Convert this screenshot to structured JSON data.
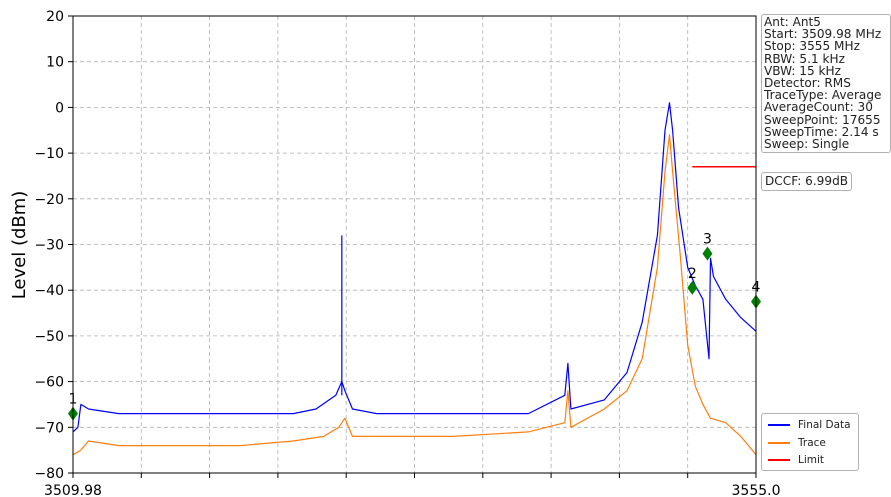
{
  "chart_data": {
    "type": "line",
    "xlabel": "",
    "ylabel": "Level (dBm)",
    "xlim": [
      3509.98,
      3555.0
    ],
    "ylim": [
      -80,
      20
    ],
    "x_tick_labels": [
      "3509.98",
      "3555.0"
    ],
    "y_ticks": [
      20,
      10,
      0,
      -10,
      -20,
      -30,
      -40,
      -50,
      -60,
      -70,
      -80
    ],
    "y_tick_labels": [
      "20",
      "10",
      "0",
      "−10",
      "−20",
      "−30",
      "−40",
      "−50",
      "−60",
      "−70",
      "−80"
    ],
    "grid": true,
    "legend_position": "lower-right",
    "series": [
      {
        "name": "Final Data",
        "color": "#0000ff",
        "x": [
          3509.98,
          3510.3,
          3510.5,
          3511.0,
          3513.0,
          3517.0,
          3521.0,
          3524.5,
          3526.0,
          3527.3,
          3527.7,
          3527.9,
          3528.4,
          3530.0,
          3535.0,
          3540.0,
          3542.4,
          3542.6,
          3542.8,
          3545.0,
          3546.5,
          3547.5,
          3548.5,
          3549.0,
          3549.3,
          3549.5,
          3549.9,
          3550.5,
          3551.0,
          3551.5,
          3551.9,
          3552.0,
          3552.2,
          3553.0,
          3554.0,
          3555.0
        ],
        "values": [
          -71,
          -70,
          -65,
          -66,
          -67,
          -67,
          -67,
          -67,
          -66,
          -63,
          -60,
          -62,
          -66,
          -67,
          -67,
          -67,
          -63,
          -56,
          -66,
          -64,
          -58,
          -47,
          -28,
          -5,
          1,
          -5,
          -22,
          -35,
          -39,
          -42,
          -55,
          -33,
          -37,
          -42,
          -46,
          -49
        ]
      },
      {
        "name": "Trace",
        "color": "#ff7f0e",
        "x": [
          3509.98,
          3510.5,
          3511.0,
          3513.0,
          3517.0,
          3521.0,
          3524.5,
          3526.5,
          3527.5,
          3527.9,
          3528.4,
          3530.0,
          3535.0,
          3540.0,
          3542.4,
          3542.6,
          3542.8,
          3545.0,
          3546.5,
          3547.5,
          3548.5,
          3549.0,
          3549.3,
          3549.5,
          3550.0,
          3550.5,
          3551.0,
          3551.5,
          3552.0,
          3553.0,
          3554.0,
          3555.0
        ],
        "values": [
          -76,
          -75,
          -73,
          -74,
          -74,
          -74,
          -73,
          -72,
          -70,
          -68,
          -72,
          -72,
          -72,
          -71,
          -69,
          -62,
          -70,
          -66,
          -62,
          -55,
          -35,
          -14,
          -6,
          -14,
          -32,
          -52,
          -61,
          -65,
          -68,
          -69,
          -72,
          -76
        ]
      },
      {
        "name": "Limit",
        "color": "#ff0000",
        "x": [
          3550.8,
          3555.0
        ],
        "values": [
          -13,
          -13
        ]
      }
    ],
    "spikes": [
      {
        "series": "Final Data",
        "x": 3527.7,
        "peak": -28,
        "base": -63
      }
    ],
    "markers": [
      {
        "label": "1",
        "x": 3509.98,
        "y": -67
      },
      {
        "label": "2",
        "x": 3550.8,
        "y": -39.5
      },
      {
        "label": "3",
        "x": 3551.8,
        "y": -32
      },
      {
        "label": "4",
        "x": 3555.0,
        "y": -42.5
      }
    ],
    "marker_color": "#008000"
  },
  "info": {
    "lines": [
      "Ant: Ant5",
      "Start: 3509.98 MHz",
      "Stop: 3555 MHz",
      "RBW: 5.1 kHz",
      "VBW: 15 kHz",
      "Detector: RMS",
      "TraceType: Average",
      "AverageCount: 30",
      "SweepPoint: 17655",
      "SweepTime: 2.14 s",
      "Sweep: Single"
    ]
  },
  "dccf": {
    "text": "DCCF: 6.99dB"
  }
}
